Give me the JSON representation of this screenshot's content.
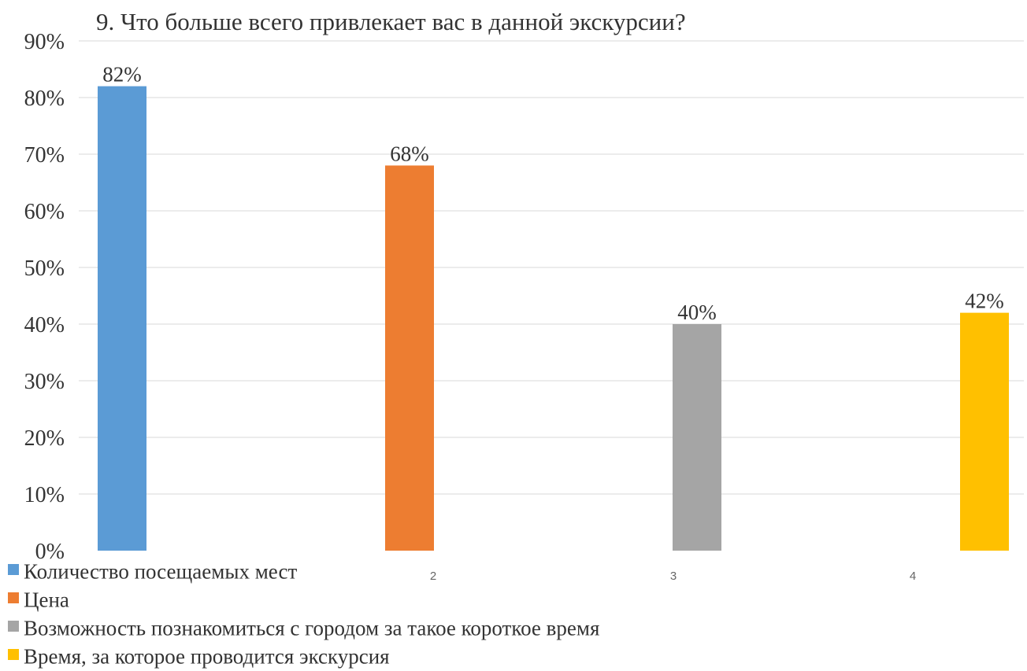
{
  "chart_data": {
    "type": "bar",
    "title": "9. Что больше всего привлекает вас в данной экскурсии?",
    "categories": [
      "",
      "2",
      "3",
      "4"
    ],
    "series": [
      {
        "name": "Количество посещаемых мест",
        "value": 82,
        "value_label": "82%",
        "color": "#5b9bd5"
      },
      {
        "name": "Цена",
        "value": 68,
        "value_label": "68%",
        "color": "#ed7d31"
      },
      {
        "name": "Возможность познакомиться с городом за такое короткое время",
        "value": 40,
        "value_label": "40%",
        "color": "#a5a5a5"
      },
      {
        "name": "Время, за которое проводится экскурсия",
        "value": 42,
        "value_label": "42%",
        "color": "#ffc000"
      }
    ],
    "ylim": [
      0,
      90
    ],
    "yticks": [
      0,
      10,
      20,
      30,
      40,
      50,
      60,
      70,
      80,
      90
    ],
    "ytick_labels": [
      "0%",
      "10%",
      "20%",
      "30%",
      "40%",
      "50%",
      "60%",
      "70%",
      "80%",
      "90%"
    ],
    "grid": true,
    "legend_position": "bottom-left"
  }
}
